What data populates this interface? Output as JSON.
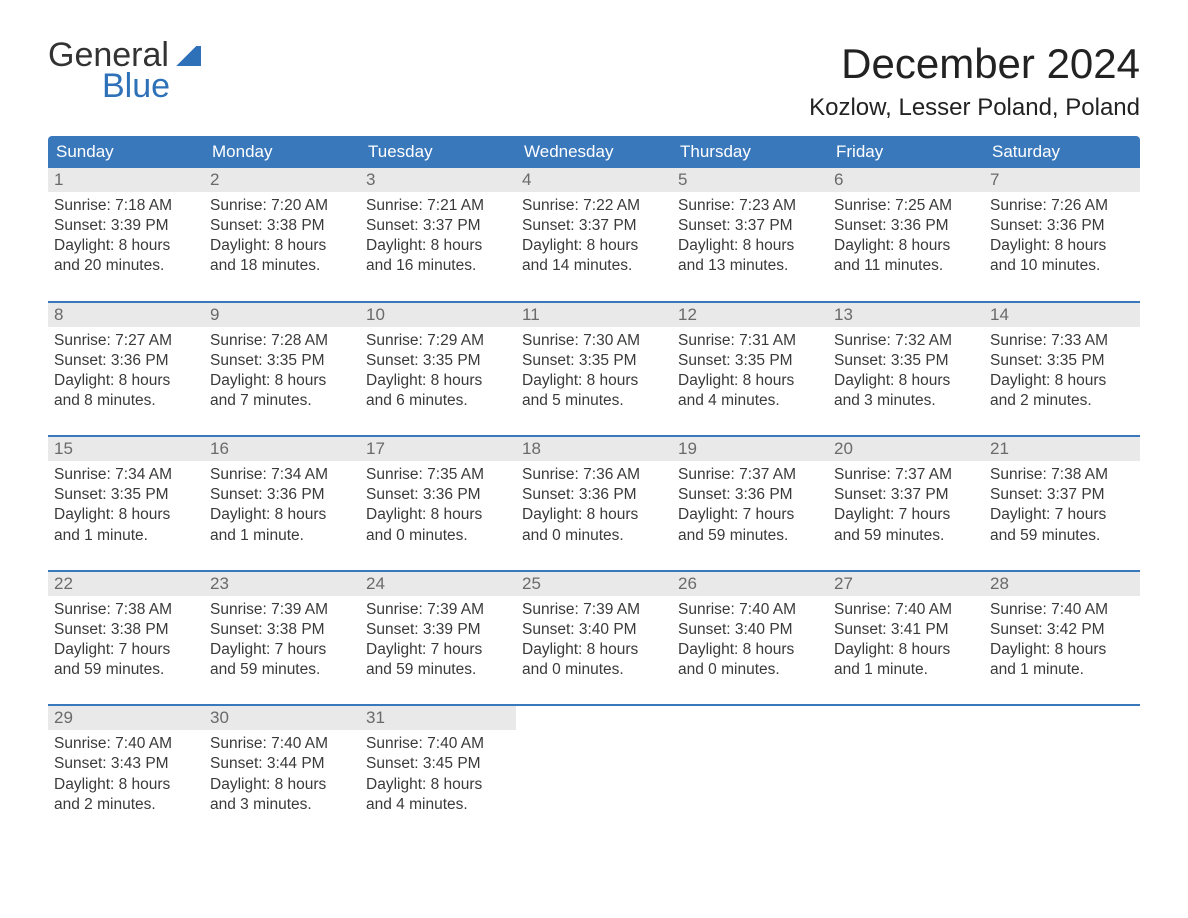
{
  "logo": {
    "word1": "General",
    "word2": "Blue"
  },
  "title": "December 2024",
  "location": "Kozlow, Lesser Poland, Poland",
  "colors": {
    "header_bg": "#3a78bc",
    "header_text": "#ffffff",
    "daynum_bg": "#e9e9e9",
    "daynum_text": "#6a6a6a",
    "body_text": "#3a3a3a",
    "rule": "#3a78bc",
    "logo_blue": "#2f71b8",
    "page_bg": "#ffffff"
  },
  "typography": {
    "title_fontsize": 42,
    "location_fontsize": 24,
    "weekday_fontsize": 17,
    "daynum_fontsize": 17,
    "body_fontsize": 15.5,
    "logo_fontsize": 34
  },
  "weekdays": [
    "Sunday",
    "Monday",
    "Tuesday",
    "Wednesday",
    "Thursday",
    "Friday",
    "Saturday"
  ],
  "weeks": [
    [
      {
        "n": "1",
        "sunrise": "Sunrise: 7:18 AM",
        "sunset": "Sunset: 3:39 PM",
        "d1": "Daylight: 8 hours",
        "d2": "and 20 minutes."
      },
      {
        "n": "2",
        "sunrise": "Sunrise: 7:20 AM",
        "sunset": "Sunset: 3:38 PM",
        "d1": "Daylight: 8 hours",
        "d2": "and 18 minutes."
      },
      {
        "n": "3",
        "sunrise": "Sunrise: 7:21 AM",
        "sunset": "Sunset: 3:37 PM",
        "d1": "Daylight: 8 hours",
        "d2": "and 16 minutes."
      },
      {
        "n": "4",
        "sunrise": "Sunrise: 7:22 AM",
        "sunset": "Sunset: 3:37 PM",
        "d1": "Daylight: 8 hours",
        "d2": "and 14 minutes."
      },
      {
        "n": "5",
        "sunrise": "Sunrise: 7:23 AM",
        "sunset": "Sunset: 3:37 PM",
        "d1": "Daylight: 8 hours",
        "d2": "and 13 minutes."
      },
      {
        "n": "6",
        "sunrise": "Sunrise: 7:25 AM",
        "sunset": "Sunset: 3:36 PM",
        "d1": "Daylight: 8 hours",
        "d2": "and 11 minutes."
      },
      {
        "n": "7",
        "sunrise": "Sunrise: 7:26 AM",
        "sunset": "Sunset: 3:36 PM",
        "d1": "Daylight: 8 hours",
        "d2": "and 10 minutes."
      }
    ],
    [
      {
        "n": "8",
        "sunrise": "Sunrise: 7:27 AM",
        "sunset": "Sunset: 3:36 PM",
        "d1": "Daylight: 8 hours",
        "d2": "and 8 minutes."
      },
      {
        "n": "9",
        "sunrise": "Sunrise: 7:28 AM",
        "sunset": "Sunset: 3:35 PM",
        "d1": "Daylight: 8 hours",
        "d2": "and 7 minutes."
      },
      {
        "n": "10",
        "sunrise": "Sunrise: 7:29 AM",
        "sunset": "Sunset: 3:35 PM",
        "d1": "Daylight: 8 hours",
        "d2": "and 6 minutes."
      },
      {
        "n": "11",
        "sunrise": "Sunrise: 7:30 AM",
        "sunset": "Sunset: 3:35 PM",
        "d1": "Daylight: 8 hours",
        "d2": "and 5 minutes."
      },
      {
        "n": "12",
        "sunrise": "Sunrise: 7:31 AM",
        "sunset": "Sunset: 3:35 PM",
        "d1": "Daylight: 8 hours",
        "d2": "and 4 minutes."
      },
      {
        "n": "13",
        "sunrise": "Sunrise: 7:32 AM",
        "sunset": "Sunset: 3:35 PM",
        "d1": "Daylight: 8 hours",
        "d2": "and 3 minutes."
      },
      {
        "n": "14",
        "sunrise": "Sunrise: 7:33 AM",
        "sunset": "Sunset: 3:35 PM",
        "d1": "Daylight: 8 hours",
        "d2": "and 2 minutes."
      }
    ],
    [
      {
        "n": "15",
        "sunrise": "Sunrise: 7:34 AM",
        "sunset": "Sunset: 3:35 PM",
        "d1": "Daylight: 8 hours",
        "d2": "and 1 minute."
      },
      {
        "n": "16",
        "sunrise": "Sunrise: 7:34 AM",
        "sunset": "Sunset: 3:36 PM",
        "d1": "Daylight: 8 hours",
        "d2": "and 1 minute."
      },
      {
        "n": "17",
        "sunrise": "Sunrise: 7:35 AM",
        "sunset": "Sunset: 3:36 PM",
        "d1": "Daylight: 8 hours",
        "d2": "and 0 minutes."
      },
      {
        "n": "18",
        "sunrise": "Sunrise: 7:36 AM",
        "sunset": "Sunset: 3:36 PM",
        "d1": "Daylight: 8 hours",
        "d2": "and 0 minutes."
      },
      {
        "n": "19",
        "sunrise": "Sunrise: 7:37 AM",
        "sunset": "Sunset: 3:36 PM",
        "d1": "Daylight: 7 hours",
        "d2": "and 59 minutes."
      },
      {
        "n": "20",
        "sunrise": "Sunrise: 7:37 AM",
        "sunset": "Sunset: 3:37 PM",
        "d1": "Daylight: 7 hours",
        "d2": "and 59 minutes."
      },
      {
        "n": "21",
        "sunrise": "Sunrise: 7:38 AM",
        "sunset": "Sunset: 3:37 PM",
        "d1": "Daylight: 7 hours",
        "d2": "and 59 minutes."
      }
    ],
    [
      {
        "n": "22",
        "sunrise": "Sunrise: 7:38 AM",
        "sunset": "Sunset: 3:38 PM",
        "d1": "Daylight: 7 hours",
        "d2": "and 59 minutes."
      },
      {
        "n": "23",
        "sunrise": "Sunrise: 7:39 AM",
        "sunset": "Sunset: 3:38 PM",
        "d1": "Daylight: 7 hours",
        "d2": "and 59 minutes."
      },
      {
        "n": "24",
        "sunrise": "Sunrise: 7:39 AM",
        "sunset": "Sunset: 3:39 PM",
        "d1": "Daylight: 7 hours",
        "d2": "and 59 minutes."
      },
      {
        "n": "25",
        "sunrise": "Sunrise: 7:39 AM",
        "sunset": "Sunset: 3:40 PM",
        "d1": "Daylight: 8 hours",
        "d2": "and 0 minutes."
      },
      {
        "n": "26",
        "sunrise": "Sunrise: 7:40 AM",
        "sunset": "Sunset: 3:40 PM",
        "d1": "Daylight: 8 hours",
        "d2": "and 0 minutes."
      },
      {
        "n": "27",
        "sunrise": "Sunrise: 7:40 AM",
        "sunset": "Sunset: 3:41 PM",
        "d1": "Daylight: 8 hours",
        "d2": "and 1 minute."
      },
      {
        "n": "28",
        "sunrise": "Sunrise: 7:40 AM",
        "sunset": "Sunset: 3:42 PM",
        "d1": "Daylight: 8 hours",
        "d2": "and 1 minute."
      }
    ],
    [
      {
        "n": "29",
        "sunrise": "Sunrise: 7:40 AM",
        "sunset": "Sunset: 3:43 PM",
        "d1": "Daylight: 8 hours",
        "d2": "and 2 minutes."
      },
      {
        "n": "30",
        "sunrise": "Sunrise: 7:40 AM",
        "sunset": "Sunset: 3:44 PM",
        "d1": "Daylight: 8 hours",
        "d2": "and 3 minutes."
      },
      {
        "n": "31",
        "sunrise": "Sunrise: 7:40 AM",
        "sunset": "Sunset: 3:45 PM",
        "d1": "Daylight: 8 hours",
        "d2": "and 4 minutes."
      },
      {
        "empty": true
      },
      {
        "empty": true
      },
      {
        "empty": true
      },
      {
        "empty": true
      }
    ]
  ]
}
